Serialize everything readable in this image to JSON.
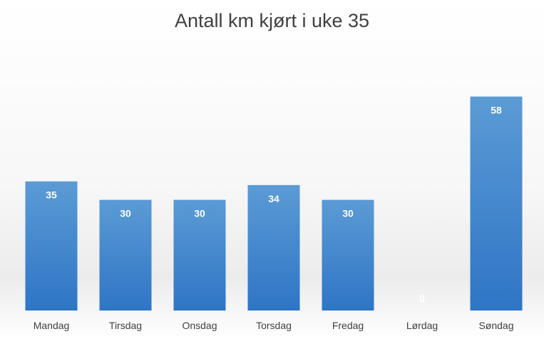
{
  "chart_data": {
    "type": "bar",
    "title": "Antall km kjørt i uke 35",
    "xlabel": "",
    "ylabel": "",
    "categories": [
      "Mandag",
      "Tirsdag",
      "Onsdag",
      "Torsdag",
      "Fredag",
      "Lørdag",
      "Søndag"
    ],
    "values": [
      35,
      30,
      30,
      34,
      30,
      0,
      58
    ],
    "data_labels": [
      "35",
      "30",
      "30",
      "34",
      "30",
      "0",
      "58"
    ],
    "ylim": [
      0,
      70
    ],
    "grid": false,
    "legend": "none",
    "bar_color_top": "#5b9bd5",
    "bar_color_bottom": "#2e75c5",
    "data_label_color": "#ffffff"
  }
}
